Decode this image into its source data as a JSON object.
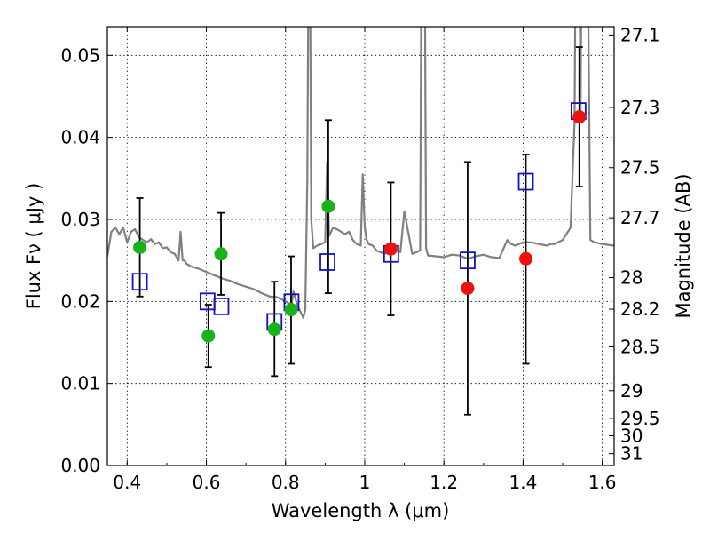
{
  "chart_data": {
    "type": "scatter",
    "xlabel": "Wavelength  λ (μm)",
    "ylabel": "Flux  Fν  ( μJy )",
    "y2label": "Magnitude (AB)",
    "xlim": [
      0.35,
      1.63
    ],
    "ylim": [
      0.0,
      0.0535
    ],
    "x_ticks": [
      "0.4",
      "0.6",
      "0.8",
      "1",
      "1.2",
      "1.4",
      "1.6"
    ],
    "y_ticks": [
      "0.00",
      "0.01",
      "0.02",
      "0.03",
      "0.04",
      "0.05"
    ],
    "y2_ticks": [
      "27.1",
      "27.3",
      "27.5",
      "27.7",
      "28",
      "28.2",
      "28.5",
      "29",
      "29.5",
      "30",
      "31"
    ],
    "grid": true,
    "colors": {
      "model": "#808080",
      "observed_green": "#19b319",
      "observed_red": "#ee1111",
      "model_box": "#1111cc",
      "errorbar": "#000000"
    },
    "model_spectrum": {
      "x": [
        0.35,
        0.36,
        0.37,
        0.38,
        0.39,
        0.4,
        0.41,
        0.42,
        0.43,
        0.44,
        0.45,
        0.46,
        0.47,
        0.48,
        0.49,
        0.5,
        0.51,
        0.52,
        0.53,
        0.535,
        0.54,
        0.545,
        0.55,
        0.56,
        0.58,
        0.6,
        0.62,
        0.64,
        0.66,
        0.68,
        0.7,
        0.72,
        0.74,
        0.76,
        0.78,
        0.8,
        0.815,
        0.82,
        0.83,
        0.84,
        0.845,
        0.85,
        0.855,
        0.86,
        0.865,
        0.87,
        0.88,
        0.89,
        0.9,
        0.905,
        0.91,
        0.92,
        0.93,
        0.94,
        0.95,
        0.96,
        0.97,
        0.98,
        0.99,
        0.995,
        1.0,
        1.005,
        1.01,
        1.02,
        1.03,
        1.04,
        1.05,
        1.06,
        1.07,
        1.08,
        1.09,
        1.1,
        1.12,
        1.14,
        1.145,
        1.15,
        1.155,
        1.16,
        1.18,
        1.2,
        1.22,
        1.24,
        1.26,
        1.28,
        1.3,
        1.32,
        1.34,
        1.36,
        1.37,
        1.38,
        1.4,
        1.42,
        1.44,
        1.46,
        1.47,
        1.48,
        1.5,
        1.52,
        1.53,
        1.535,
        1.54,
        1.545,
        1.55,
        1.56,
        1.57,
        1.58,
        1.6,
        1.63
      ],
      "y": [
        0.0255,
        0.0285,
        0.029,
        0.0282,
        0.029,
        0.0272,
        0.0285,
        0.0288,
        0.0278,
        0.0275,
        0.0272,
        0.0276,
        0.027,
        0.0272,
        0.0265,
        0.0266,
        0.026,
        0.0258,
        0.025,
        0.0285,
        0.025,
        0.025,
        0.0246,
        0.0243,
        0.024,
        0.0236,
        0.0232,
        0.0228,
        0.0225,
        0.0221,
        0.0218,
        0.0215,
        0.021,
        0.0206,
        0.0205,
        0.02,
        0.0196,
        0.0212,
        0.0195,
        0.0185,
        0.018,
        0.019,
        0.035,
        0.08,
        0.03,
        0.0265,
        0.0268,
        0.027,
        0.0272,
        0.037,
        0.028,
        0.029,
        0.0288,
        0.0285,
        0.0282,
        0.0285,
        0.0275,
        0.027,
        0.0268,
        0.0355,
        0.029,
        0.0275,
        0.027,
        0.0268,
        0.0262,
        0.026,
        0.0258,
        0.026,
        0.027,
        0.0262,
        0.026,
        0.031,
        0.0258,
        0.0262,
        0.08,
        0.08,
        0.0265,
        0.0256,
        0.0255,
        0.0254,
        0.0257,
        0.0256,
        0.0252,
        0.0255,
        0.0257,
        0.0254,
        0.0253,
        0.0275,
        0.027,
        0.0268,
        0.0272,
        0.0272,
        0.027,
        0.0268,
        0.027,
        0.027,
        0.0275,
        0.029,
        0.042,
        0.08,
        0.08,
        0.042,
        0.08,
        0.08,
        0.0275,
        0.0272,
        0.027,
        0.0268
      ]
    },
    "observed": [
      {
        "x": 0.432,
        "y": 0.0266,
        "yerr_lo": 0.0206,
        "yerr_hi": 0.0326,
        "color": "green"
      },
      {
        "x": 0.605,
        "y": 0.0158,
        "yerr_lo": 0.012,
        "yerr_hi": 0.0196,
        "color": "green"
      },
      {
        "x": 0.637,
        "y": 0.0258,
        "yerr_lo": 0.0208,
        "yerr_hi": 0.0308,
        "color": "green"
      },
      {
        "x": 0.772,
        "y": 0.0166,
        "yerr_lo": 0.0109,
        "yerr_hi": 0.0224,
        "color": "green"
      },
      {
        "x": 0.814,
        "y": 0.019,
        "yerr_lo": 0.0124,
        "yerr_hi": 0.0255,
        "color": "green"
      },
      {
        "x": 0.908,
        "y": 0.0316,
        "yerr_lo": 0.021,
        "yerr_hi": 0.0421,
        "color": "green"
      },
      {
        "x": 1.066,
        "y": 0.0264,
        "yerr_lo": 0.0183,
        "yerr_hi": 0.0345,
        "color": "red"
      },
      {
        "x": 1.26,
        "y": 0.0216,
        "yerr_lo": 0.0062,
        "yerr_hi": 0.037,
        "color": "red"
      },
      {
        "x": 1.407,
        "y": 0.0252,
        "yerr_lo": 0.0124,
        "yerr_hi": 0.0379,
        "color": "red"
      },
      {
        "x": 1.542,
        "y": 0.0425,
        "yerr_lo": 0.034,
        "yerr_hi": 0.051,
        "color": "red"
      }
    ],
    "model_photometry": [
      {
        "x": 0.432,
        "y": 0.0224
      },
      {
        "x": 0.603,
        "y": 0.02
      },
      {
        "x": 0.638,
        "y": 0.0194
      },
      {
        "x": 0.772,
        "y": 0.0175
      },
      {
        "x": 0.815,
        "y": 0.0199
      },
      {
        "x": 0.906,
        "y": 0.0248
      },
      {
        "x": 1.067,
        "y": 0.0258
      },
      {
        "x": 1.26,
        "y": 0.025
      },
      {
        "x": 1.407,
        "y": 0.0346
      },
      {
        "x": 1.54,
        "y": 0.0432
      }
    ]
  }
}
